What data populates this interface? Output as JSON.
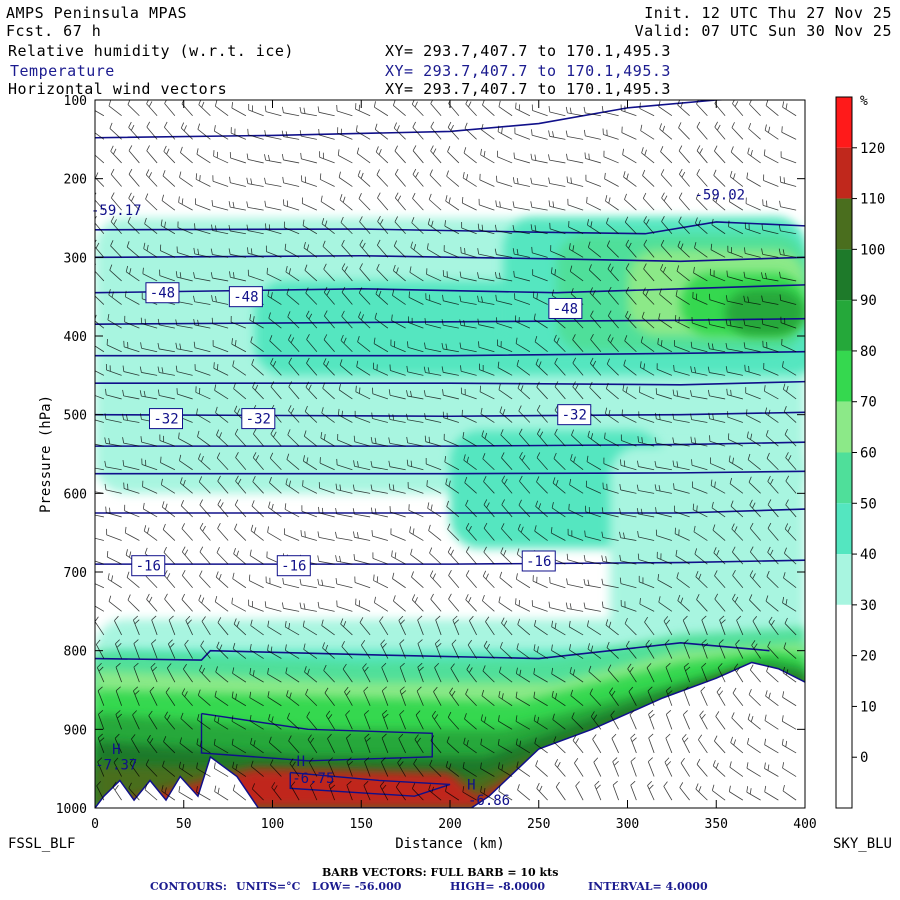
{
  "header": {
    "title": "AMPS Peninsula MPAS",
    "forecast": "Fcst.   67 h",
    "init": "Init. 12 UTC Thu 27 Nov 25",
    "valid": "Valid: 07 UTC Sun 30 Nov 25",
    "fields": [
      {
        "label": "Relative humidity (w.r.t. ice)",
        "xy": "XY= 293.7,407.7 to 170.1,495.3",
        "color": "#000000"
      },
      {
        "label": "Temperature",
        "xy": "XY= 293.7,407.7 to 170.1,495.3",
        "color": "#1b1b8f"
      },
      {
        "label": "Horizontal wind vectors",
        "xy": "XY= 293.7,407.7 to 170.1,495.3",
        "color": "#000000"
      }
    ]
  },
  "chart_data": {
    "type": "heatmap",
    "xlabel": "Distance (km)",
    "ylabel": "Pressure (hPa)",
    "xlim": [
      0,
      400
    ],
    "ylim": [
      1000,
      100
    ],
    "x_ticks": [
      "0",
      "50",
      "100",
      "150",
      "200",
      "250",
      "300",
      "350",
      "400"
    ],
    "y_ticks": [
      "100",
      "200",
      "300",
      "400",
      "500",
      "600",
      "700",
      "800",
      "900",
      "1000"
    ],
    "left_endpoint": "FSSL_BLF",
    "right_endpoint": "SKY_BLU",
    "colorbar": {
      "unit": "%",
      "labels": [
        "120",
        "110",
        "100",
        "90",
        "80",
        "70",
        "60",
        "50",
        "40",
        "30",
        "20",
        "10",
        "0"
      ],
      "colors": [
        "#ff1a1a",
        "#c0281c",
        "#4a6e1e",
        "#1e7a2a",
        "#25a83a",
        "#35d84f",
        "#8ce988",
        "#4fdf9a",
        "#54e6c0",
        "#a8f5e0",
        "#ffffff",
        "#ffffff",
        "#ffffff",
        "#ffffff"
      ]
    },
    "temperature_contours": {
      "units": "°C",
      "levels": [
        -56,
        -52,
        -48,
        -44,
        -40,
        -36,
        -32,
        -28,
        -24,
        -20,
        -16,
        -12,
        -8
      ],
      "labels": [
        {
          "text": "-59.17",
          "x": 12,
          "p": 240
        },
        {
          "text": "-59.02",
          "x": 352,
          "p": 220
        },
        {
          "text": "-48",
          "x": 38,
          "p": 345
        },
        {
          "text": "-48",
          "x": 85,
          "p": 350
        },
        {
          "text": "-48",
          "x": 265,
          "p": 365
        },
        {
          "text": "-32",
          "x": 40,
          "p": 505
        },
        {
          "text": "-32",
          "x": 92,
          "p": 505
        },
        {
          "text": "-32",
          "x": 270,
          "p": 500
        },
        {
          "text": "-16",
          "x": 30,
          "p": 692
        },
        {
          "text": "-16",
          "x": 112,
          "p": 692
        },
        {
          "text": "-16",
          "x": 250,
          "p": 686
        }
      ],
      "extrema": [
        {
          "text": "H",
          "x": 12,
          "p": 925
        },
        {
          "text": "-7.37",
          "x": 12,
          "p": 945
        },
        {
          "text": "H",
          "x": 116,
          "p": 940
        },
        {
          "text": "-6.75",
          "x": 123,
          "p": 962
        },
        {
          "text": "H",
          "x": 212,
          "p": 970
        },
        {
          "text": "-6.86",
          "x": 222,
          "p": 990
        }
      ]
    },
    "wind_barbs_note": "BARB VECTORS:  FULL BARB = 10 kts",
    "contour_info": {
      "label": "CONTOURS:",
      "units": "UNITS=°C",
      "low": "LOW= -56.000",
      "high": "HIGH= -8.0000",
      "interval": "INTERVAL=   4.0000"
    },
    "colors": {
      "contour": "#10108a",
      "terrain": "#ffffff",
      "frame": "#000000"
    }
  }
}
